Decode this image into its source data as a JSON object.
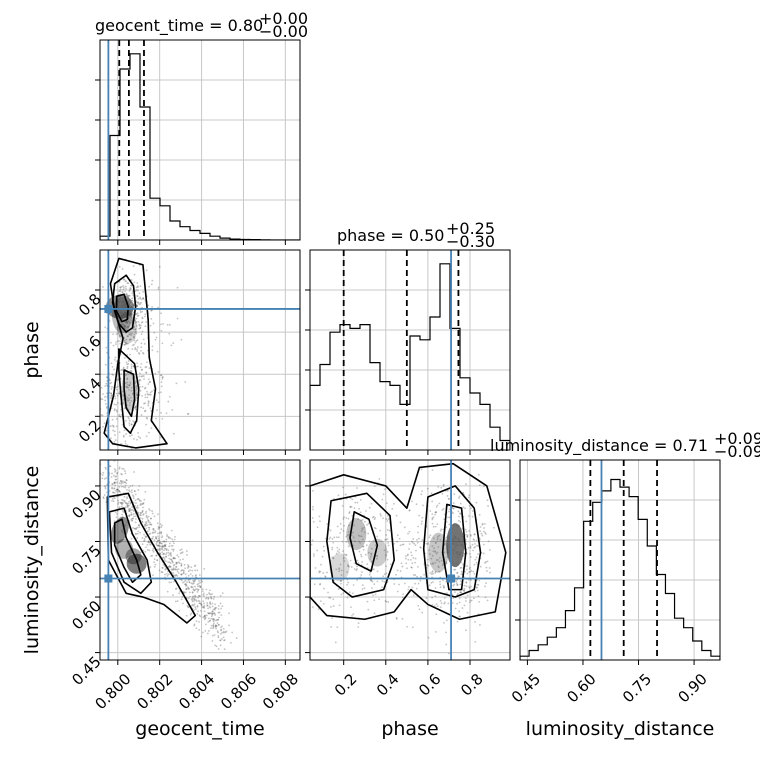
{
  "chart_data": {
    "type": "corner",
    "parameters": [
      "geocent_time",
      "phase",
      "luminosity_distance"
    ],
    "titles": [
      {
        "param": "geocent_time",
        "label": "geocent_time = 0.80",
        "plus": "+0.00",
        "minus": "−0.00"
      },
      {
        "param": "phase",
        "label": "phase = 0.50",
        "plus": "+0.25",
        "minus": "−0.30"
      },
      {
        "param": "luminosity_distance",
        "label": "luminosity_distance = 0.71",
        "plus": "+0.09",
        "minus": "−0.09"
      }
    ],
    "axis_labels": {
      "geocent_time": "geocent_time",
      "phase": "phase",
      "luminosity_distance": "luminosity_distance"
    },
    "ranges": {
      "geocent_time": [
        0.79915,
        0.8087
      ],
      "phase": [
        0.04,
        0.99
      ],
      "luminosity_distance": [
        0.43,
        0.97
      ]
    },
    "ticks": {
      "geocent_time": [
        {
          "v": 0.8,
          "t": "0.800"
        },
        {
          "v": 0.802,
          "t": "0.802"
        },
        {
          "v": 0.804,
          "t": "0.804"
        },
        {
          "v": 0.806,
          "t": "0.806"
        },
        {
          "v": 0.808,
          "t": "0.808"
        }
      ],
      "phase": [
        {
          "v": 0.2,
          "t": "0.2"
        },
        {
          "v": 0.4,
          "t": "0.4"
        },
        {
          "v": 0.6,
          "t": "0.6"
        },
        {
          "v": 0.8,
          "t": "0.8"
        }
      ],
      "luminosity_distance": [
        {
          "v": 0.45,
          "t": "0.45"
        },
        {
          "v": 0.6,
          "t": "0.60"
        },
        {
          "v": 0.75,
          "t": "0.75"
        },
        {
          "v": 0.9,
          "t": "0.90"
        }
      ]
    },
    "truths": {
      "geocent_time": 0.79955,
      "phase": 0.71,
      "luminosity_distance": 0.65
    },
    "quantiles": {
      "geocent_time": [
        0.80007,
        0.80053,
        0.80125
      ],
      "phase": [
        0.2,
        0.5,
        0.745
      ],
      "luminosity_distance": [
        0.62,
        0.71,
        0.8
      ]
    },
    "histograms": {
      "geocent_time": {
        "edges": [
          0.79915,
          0.8087
        ],
        "counts": [
          0.02,
          0.55,
          0.9,
          0.98,
          0.7,
          0.22,
          0.18,
          0.1,
          0.07,
          0.05,
          0.035,
          0.02,
          0.01,
          0.005,
          0.003,
          0.002,
          0.001,
          0.0,
          0.0,
          0.0
        ]
      },
      "phase": {
        "edges": [
          0.04,
          0.99
        ],
        "counts": [
          0.34,
          0.45,
          0.62,
          0.66,
          0.64,
          0.66,
          0.46,
          0.36,
          0.34,
          0.24,
          0.6,
          0.58,
          0.7,
          0.98,
          0.64,
          0.38,
          0.3,
          0.24,
          0.12,
          0.05
        ]
      },
      "luminosity_distance": {
        "edges": [
          0.43,
          0.97
        ],
        "counts": [
          0.02,
          0.05,
          0.08,
          0.12,
          0.17,
          0.26,
          0.38,
          0.73,
          0.83,
          0.89,
          0.95,
          0.91,
          0.86,
          0.74,
          0.6,
          0.45,
          0.35,
          0.22,
          0.17,
          0.1,
          0.05,
          0.02
        ]
      }
    }
  }
}
